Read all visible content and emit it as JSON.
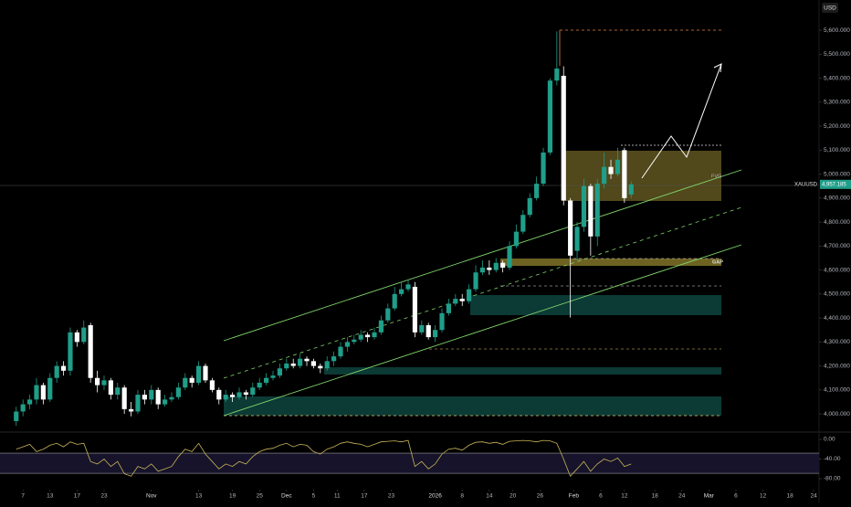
{
  "chart_data": {
    "type": "candlestick",
    "currency": "USD",
    "symbol": "XAUUSD",
    "last_price": {
      "value": 4957.185,
      "label": "4,957.185"
    },
    "annotations": [
      "FVG",
      "GAP"
    ],
    "up_color": "#1f9e89",
    "down_color": "#ffffff",
    "xlim": [
      -2.4,
      118.8
    ],
    "xticks": [
      {
        "value": 1,
        "label": "7"
      },
      {
        "value": 5,
        "label": "13"
      },
      {
        "value": 9,
        "label": "17"
      },
      {
        "value": 13,
        "label": "23"
      },
      {
        "value": 20,
        "label": "Nov"
      },
      {
        "value": 27,
        "label": "13"
      },
      {
        "value": 32,
        "label": "19"
      },
      {
        "value": 36,
        "label": "25"
      },
      {
        "value": 40,
        "label": "Dec"
      },
      {
        "value": 44,
        "label": "5"
      },
      {
        "value": 47.5,
        "label": "11"
      },
      {
        "value": 51.5,
        "label": "17"
      },
      {
        "value": 55.5,
        "label": "23"
      },
      {
        "value": 62,
        "label": "2026"
      },
      {
        "value": 66,
        "label": "8"
      },
      {
        "value": 70,
        "label": "14"
      },
      {
        "value": 73.5,
        "label": "20"
      },
      {
        "value": 77.5,
        "label": "26"
      },
      {
        "value": 82.5,
        "label": "Feb"
      },
      {
        "value": 86.5,
        "label": "6"
      },
      {
        "value": 90,
        "label": "12"
      },
      {
        "value": 94.5,
        "label": "18"
      },
      {
        "value": 98.5,
        "label": "24"
      },
      {
        "value": 102.5,
        "label": "Mar"
      },
      {
        "value": 106.5,
        "label": "6"
      },
      {
        "value": 110.5,
        "label": "12"
      },
      {
        "value": 114.5,
        "label": "18"
      },
      {
        "value": 118,
        "label": "24"
      }
    ],
    "ylim": [
      3928,
      5726
    ],
    "yticks": [
      {
        "value": 4000,
        "label": "4,000.000"
      },
      {
        "value": 4100,
        "label": "4,100.000"
      },
      {
        "value": 4200,
        "label": "4,200.000"
      },
      {
        "value": 4300,
        "label": "4,300.000"
      },
      {
        "value": 4400,
        "label": "4,400.000"
      },
      {
        "value": 4500,
        "label": "4,500.000"
      },
      {
        "value": 4600,
        "label": "4,600.000"
      },
      {
        "value": 4700,
        "label": "4,700.000"
      },
      {
        "value": 4800,
        "label": "4,800.000"
      },
      {
        "value": 4900,
        "label": "4,900.000"
      },
      {
        "value": 5000,
        "label": "5,000.000"
      },
      {
        "value": 5100,
        "label": "5,100.000"
      },
      {
        "value": 5200,
        "label": "5,200.000"
      },
      {
        "value": 5300,
        "label": "5,300.000"
      },
      {
        "value": 5400,
        "label": "5,400.000"
      },
      {
        "value": 5500,
        "label": "5,500.000"
      },
      {
        "value": 5600,
        "label": "5,600.000"
      }
    ],
    "open": [
      3970,
      4010,
      4040,
      4060,
      4120,
      4060,
      4150,
      4200,
      4180,
      4340,
      4300,
      4370,
      4150,
      4120,
      4140,
      4080,
      4110,
      4020,
      4010,
      4080,
      4060,
      4100,
      4040,
      4060,
      4070,
      4110,
      4150,
      4130,
      4200,
      4140,
      4100,
      4060,
      4080,
      4070,
      4090,
      4080,
      4110,
      4130,
      4150,
      4160,
      4190,
      4210,
      4200,
      4230,
      4220,
      4200,
      4190,
      4220,
      4240,
      4280,
      4300,
      4310,
      4330,
      4320,
      4340,
      4390,
      4440,
      4500,
      4520,
      4530,
      4340,
      4370,
      4320,
      4350,
      4420,
      4460,
      4480,
      4470,
      4520,
      4590,
      4610,
      4600,
      4630,
      4610,
      4700,
      4760,
      4830,
      4900,
      4960,
      5090,
      5390,
      5410,
      4890,
      4680,
      4780,
      4950,
      4740,
      4960,
      5030,
      5000,
      5100,
      4915
    ],
    "high": [
      4030,
      4060,
      4080,
      4150,
      4130,
      4170,
      4220,
      4220,
      4360,
      4350,
      4390,
      4380,
      4180,
      4160,
      4150,
      4130,
      4120,
      4050,
      4100,
      4100,
      4120,
      4110,
      4080,
      4090,
      4130,
      4170,
      4160,
      4220,
      4210,
      4150,
      4110,
      4100,
      4090,
      4110,
      4100,
      4130,
      4150,
      4170,
      4180,
      4210,
      4230,
      4230,
      4250,
      4240,
      4230,
      4210,
      4240,
      4260,
      4300,
      4320,
      4330,
      4350,
      4340,
      4360,
      4410,
      4460,
      4530,
      4550,
      4560,
      4550,
      4390,
      4380,
      4370,
      4440,
      4480,
      4500,
      4500,
      4540,
      4620,
      4640,
      4640,
      4650,
      4640,
      4720,
      4790,
      4850,
      4920,
      4990,
      5110,
      5400,
      5595,
      5450,
      4900,
      4800,
      4980,
      4960,
      4980,
      5090,
      5060,
      5110,
      5110,
      4970
    ],
    "low": [
      3950,
      3990,
      4020,
      4040,
      4040,
      4050,
      4130,
      4160,
      4160,
      4280,
      4290,
      4130,
      4090,
      4100,
      4060,
      4060,
      4000,
      3990,
      4000,
      4040,
      4040,
      4020,
      4030,
      4050,
      4060,
      4100,
      4110,
      4120,
      4130,
      4090,
      4040,
      4050,
      4050,
      4060,
      4060,
      4070,
      4100,
      4120,
      4140,
      4150,
      4180,
      4190,
      4190,
      4200,
      4190,
      4170,
      4180,
      4200,
      4230,
      4260,
      4290,
      4300,
      4300,
      4310,
      4330,
      4380,
      4430,
      4490,
      4510,
      4320,
      4330,
      4310,
      4300,
      4340,
      4410,
      4450,
      4450,
      4460,
      4510,
      4580,
      4580,
      4590,
      4590,
      4600,
      4690,
      4750,
      4820,
      4890,
      4950,
      5080,
      5370,
      4870,
      4402,
      4640,
      4760,
      4660,
      4700,
      4940,
      4980,
      4990,
      4880,
      4900
    ],
    "close": [
      4010,
      4040,
      4060,
      4120,
      4060,
      4150,
      4200,
      4180,
      4340,
      4300,
      4360,
      4150,
      4120,
      4140,
      4080,
      4110,
      4020,
      4010,
      4080,
      4060,
      4100,
      4040,
      4060,
      4070,
      4110,
      4150,
      4130,
      4200,
      4140,
      4100,
      4060,
      4080,
      4070,
      4090,
      4080,
      4110,
      4130,
      4150,
      4160,
      4190,
      4210,
      4200,
      4230,
      4220,
      4200,
      4190,
      4220,
      4240,
      4280,
      4300,
      4310,
      4330,
      4320,
      4340,
      4390,
      4440,
      4500,
      4520,
      4540,
      4340,
      4370,
      4320,
      4350,
      4420,
      4460,
      4480,
      4470,
      4520,
      4590,
      4610,
      4600,
      4630,
      4610,
      4700,
      4760,
      4830,
      4900,
      4960,
      5090,
      5390,
      5440,
      4890,
      4660,
      4780,
      4950,
      4740,
      4960,
      5030,
      5000,
      5060,
      4900,
      4957.185
    ],
    "oscillator": {
      "type": "line",
      "color": "#c9b458",
      "ylim": [
        -106,
        13
      ],
      "yticks": [
        {
          "value": 0,
          "label": "0.00"
        },
        {
          "value": -40,
          "label": "-40.00"
        },
        {
          "value": -80,
          "label": "-80.00"
        }
      ],
      "levels": [
        -28,
        -69
      ],
      "values": [
        -20,
        -15,
        -10,
        -25,
        -20,
        -12,
        -8,
        -15,
        -5,
        -10,
        -8,
        -45,
        -50,
        -40,
        -55,
        -45,
        -70,
        -75,
        -55,
        -60,
        -50,
        -65,
        -60,
        -55,
        -35,
        -20,
        -25,
        -8,
        -30,
        -45,
        -60,
        -50,
        -55,
        -45,
        -50,
        -35,
        -25,
        -20,
        -18,
        -12,
        -8,
        -15,
        -10,
        -12,
        -25,
        -30,
        -20,
        -15,
        -8,
        -5,
        -8,
        -10,
        -15,
        -10,
        -5,
        -4,
        -3,
        -5,
        -2,
        -55,
        -45,
        -60,
        -50,
        -30,
        -20,
        -18,
        -22,
        -12,
        -6,
        -5,
        -8,
        -6,
        -10,
        -4,
        -3,
        -2,
        -3,
        -5,
        -2,
        -3,
        -8,
        -40,
        -75,
        -60,
        -45,
        -65,
        -50,
        -40,
        -45,
        -38,
        -55,
        -50
      ]
    }
  }
}
